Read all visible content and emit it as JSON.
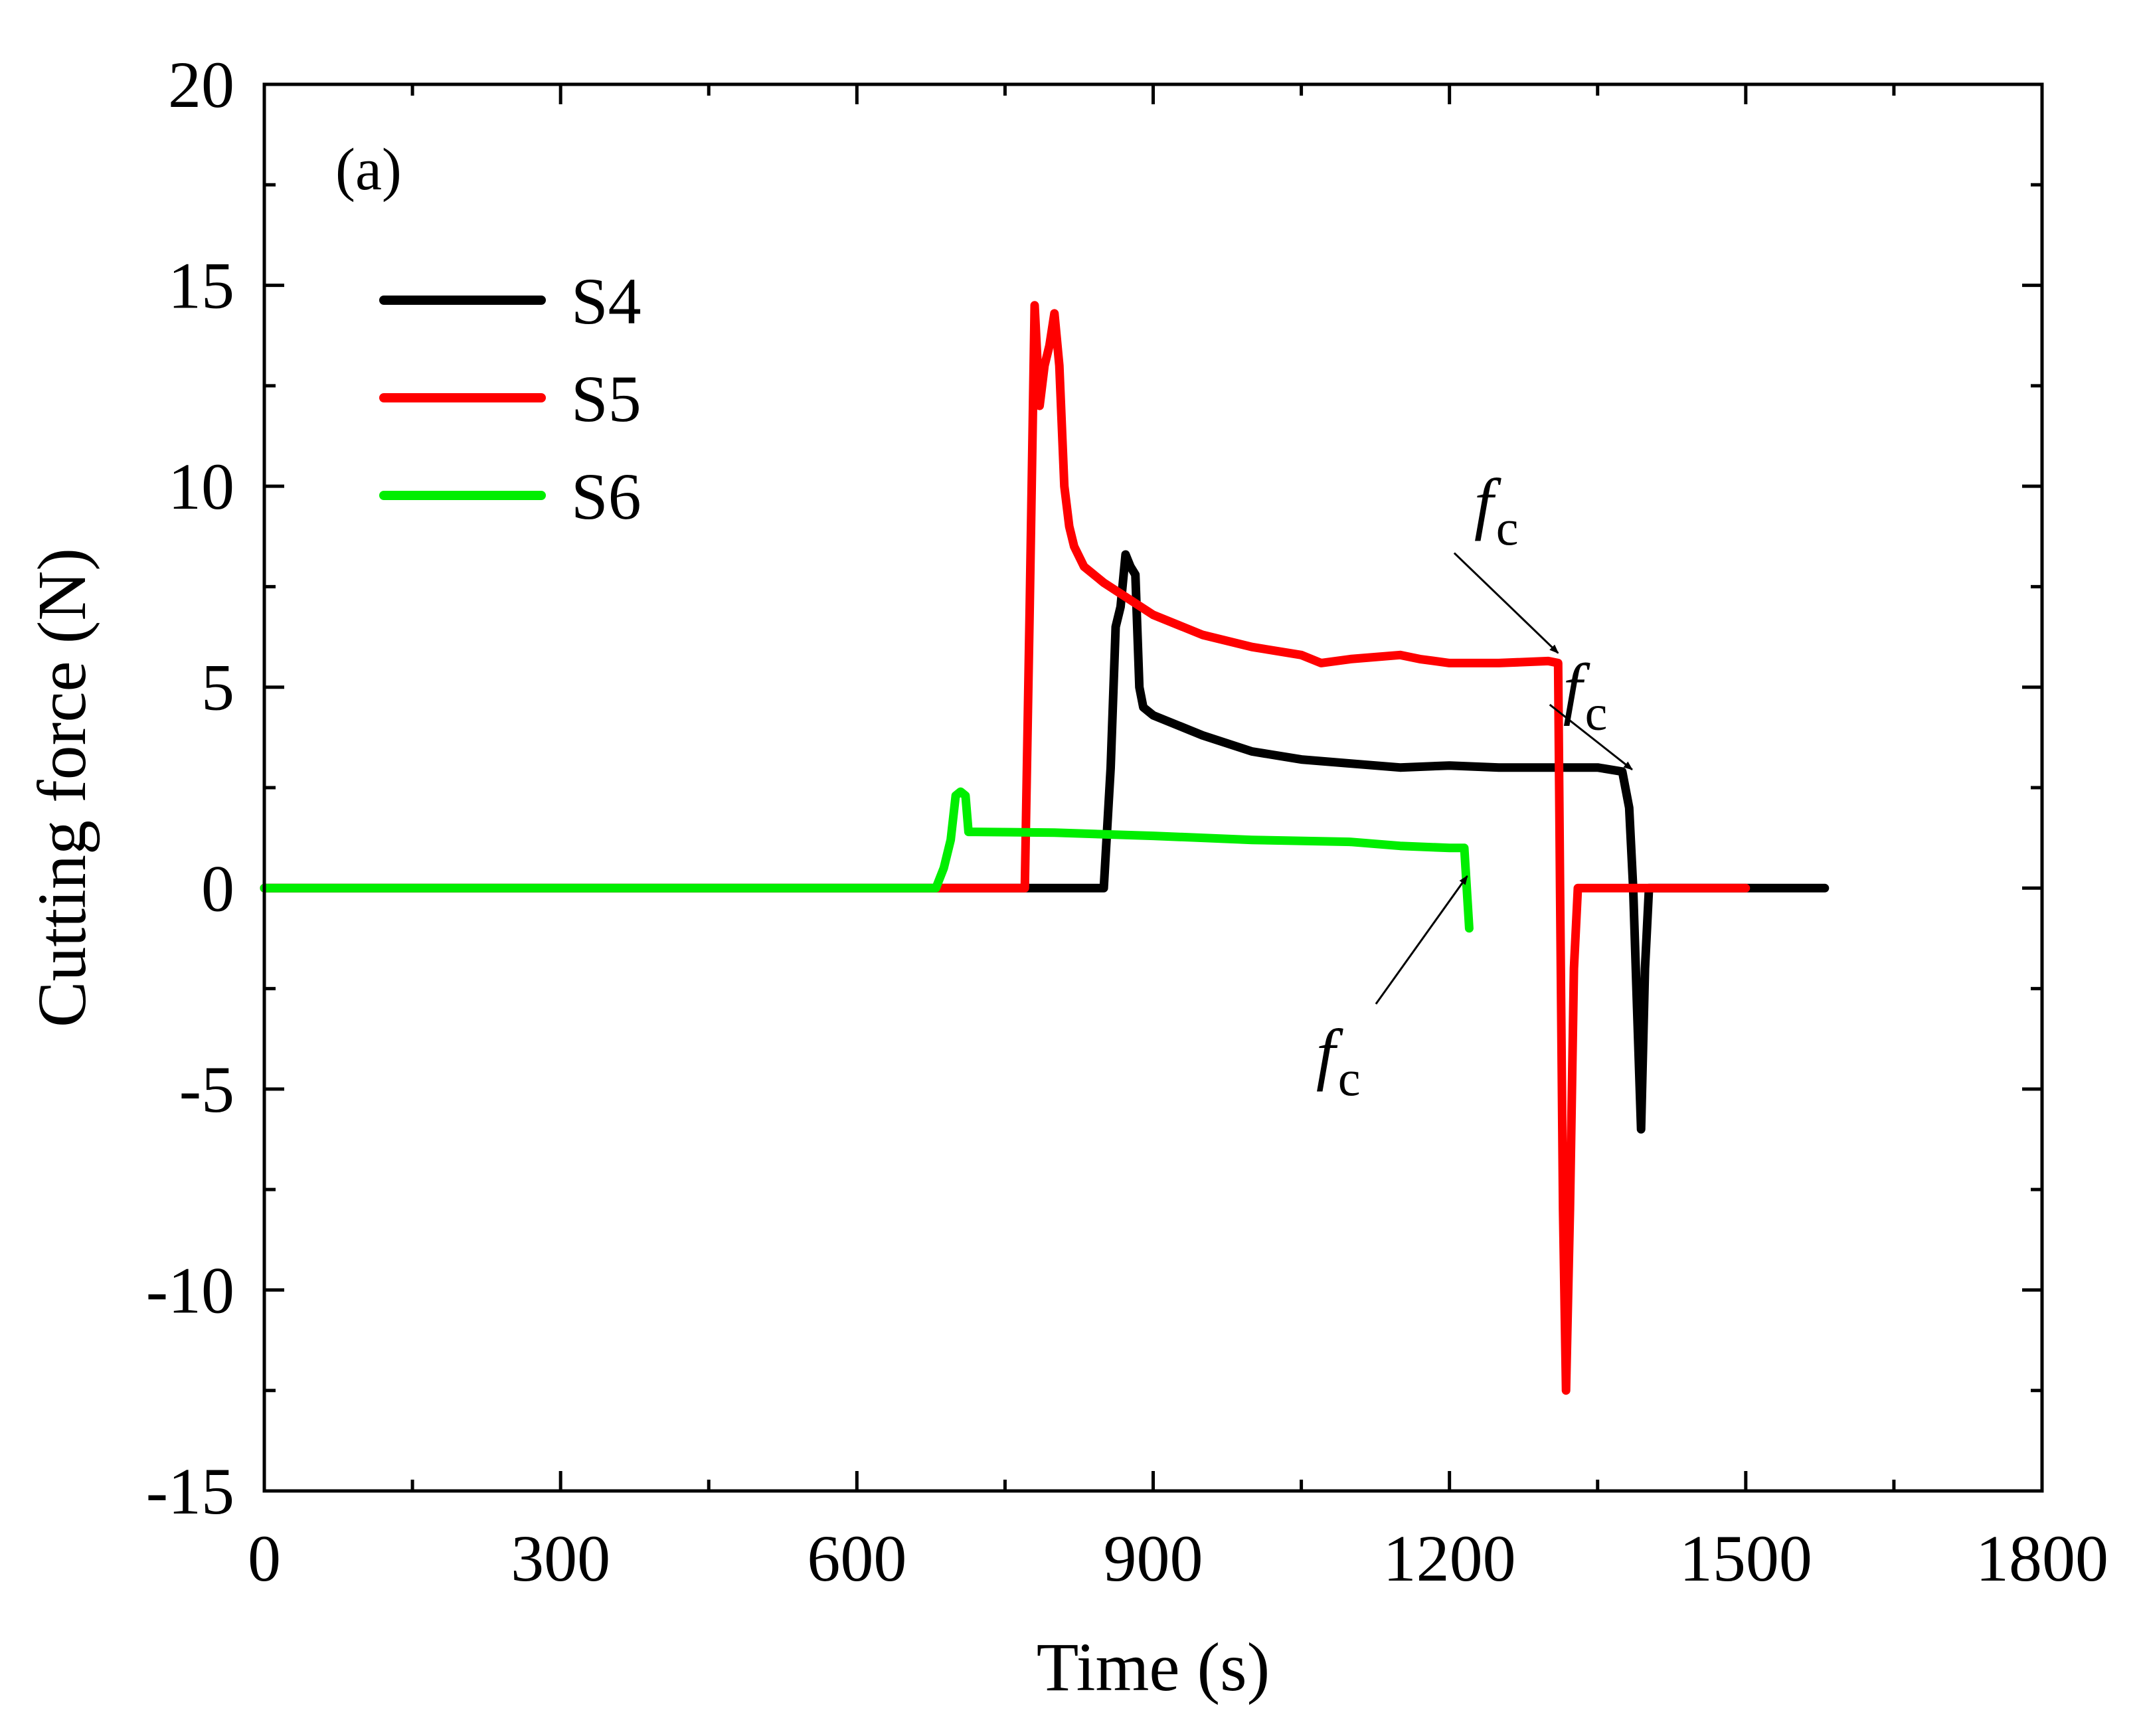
{
  "chart_data": {
    "type": "line",
    "title": "",
    "panel_label": "(a)",
    "xlabel": "Time (s)",
    "ylabel": "Cutting force (N)",
    "xlim": [
      0,
      1800
    ],
    "ylim": [
      -15,
      20
    ],
    "xticks": [
      0,
      300,
      600,
      900,
      1200,
      1500,
      1800
    ],
    "yticks": [
      -15,
      -10,
      -5,
      0,
      5,
      10,
      15,
      20
    ],
    "xtick_labels": [
      "0",
      "300",
      "600",
      "900",
      "1200",
      "1500",
      "1800"
    ],
    "ytick_labels": [
      "-15",
      "-10",
      "-5",
      "0",
      "5",
      "10",
      "15",
      "20"
    ],
    "grid": false,
    "legend_position": "top-left",
    "series": [
      {
        "name": "S4",
        "color": "#000000",
        "x": [
          0,
          850,
          857,
          862,
          867,
          872,
          877,
          882,
          886,
          890,
          900,
          950,
          1000,
          1050,
          1100,
          1150,
          1200,
          1250,
          1300,
          1350,
          1375,
          1382,
          1386,
          1390,
          1394,
          1398,
          1402,
          1580
        ],
        "y": [
          0,
          0,
          3.0,
          6.5,
          7.0,
          8.3,
          8.0,
          7.8,
          5.0,
          4.5,
          4.3,
          3.8,
          3.4,
          3.2,
          3.1,
          3.0,
          3.05,
          3.0,
          3.0,
          3.0,
          2.9,
          2.0,
          0.0,
          -3.0,
          -6.0,
          -2.0,
          0,
          0
        ]
      },
      {
        "name": "S5",
        "color": "#ff0000",
        "x": [
          0,
          770,
          775,
          780,
          785,
          790,
          795,
          800,
          805,
          810,
          815,
          820,
          830,
          850,
          900,
          950,
          1000,
          1050,
          1070,
          1100,
          1150,
          1170,
          1200,
          1250,
          1300,
          1310,
          1312,
          1315,
          1318,
          1322,
          1326,
          1330,
          1500
        ],
        "y": [
          0,
          0,
          7.0,
          14.5,
          12.0,
          13.0,
          13.5,
          14.3,
          13.0,
          10.0,
          9.0,
          8.5,
          8.0,
          7.6,
          6.8,
          6.3,
          6.0,
          5.8,
          5.6,
          5.7,
          5.8,
          5.7,
          5.6,
          5.6,
          5.65,
          5.6,
          0.0,
          -8.0,
          -12.5,
          -8.0,
          -2.0,
          0,
          0
        ]
      },
      {
        "name": "S6",
        "color": "#00ee00",
        "x": [
          0,
          680,
          688,
          695,
          700,
          705,
          710,
          713,
          720,
          800,
          900,
          1000,
          1100,
          1150,
          1200,
          1215,
          1220
        ],
        "y": [
          0,
          0,
          0.5,
          1.2,
          2.3,
          2.4,
          2.3,
          1.4,
          1.4,
          1.38,
          1.3,
          1.2,
          1.15,
          1.05,
          1.0,
          1.0,
          -1.0
        ]
      }
    ],
    "annotations": [
      {
        "text": "f",
        "subscript": "c",
        "text_x": 1225,
        "text_y": 9.0,
        "arrow_to_x": 1310,
        "arrow_to_y": 5.85,
        "target": "S5"
      },
      {
        "text": "f",
        "subscript": "c",
        "text_x": 1315,
        "text_y": 4.4,
        "arrow_to_x": 1385,
        "arrow_to_y": 2.95,
        "target": "S4"
      },
      {
        "text": "f",
        "subscript": "c",
        "text_x": 1065,
        "text_y": -4.7,
        "arrow_to_x": 1218,
        "arrow_to_y": 0.3,
        "target": "S6"
      }
    ]
  }
}
